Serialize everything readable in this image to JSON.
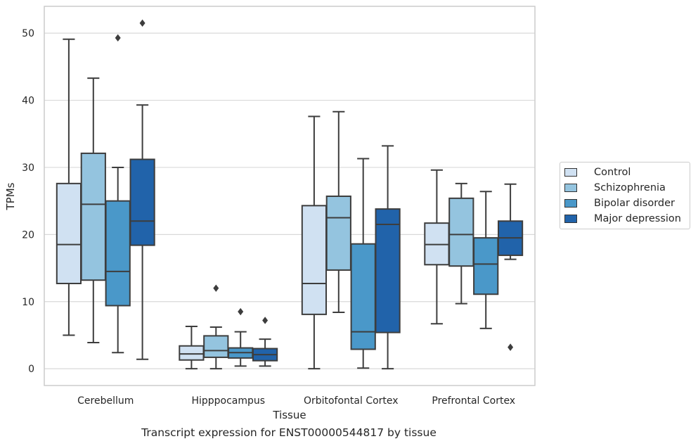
{
  "chart_data": {
    "type": "box",
    "title": "",
    "xlabel": "Tissue",
    "ylabel": "TPMs",
    "ylim": [
      -2.5,
      54
    ],
    "yticks": [
      0,
      10,
      20,
      30,
      40,
      50
    ],
    "grid": "horizontal",
    "legend_position": "right",
    "categories": [
      "Cerebellum",
      "Hipppocampus",
      "Orbitofontal Cortex",
      "Prefrontal Cortex"
    ],
    "series": [
      {
        "name": "Control",
        "color": "#d0e1f2",
        "boxes": [
          {
            "whisker_low": 5.0,
            "q1": 12.7,
            "median": 18.5,
            "q3": 27.6,
            "whisker_high": 49.1,
            "outliers": []
          },
          {
            "whisker_low": 0.0,
            "q1": 1.3,
            "median": 2.2,
            "q3": 3.4,
            "whisker_high": 6.3,
            "outliers": []
          },
          {
            "whisker_low": 0.0,
            "q1": 8.1,
            "median": 12.7,
            "q3": 24.3,
            "whisker_high": 37.6,
            "outliers": []
          },
          {
            "whisker_low": 6.7,
            "q1": 15.5,
            "median": 18.5,
            "q3": 21.7,
            "whisker_high": 29.6,
            "outliers": []
          }
        ]
      },
      {
        "name": "Schizophrenia",
        "color": "#94c4df",
        "boxes": [
          {
            "whisker_low": 3.9,
            "q1": 13.2,
            "median": 24.5,
            "q3": 32.1,
            "whisker_high": 43.3,
            "outliers": []
          },
          {
            "whisker_low": 0.0,
            "q1": 1.7,
            "median": 2.7,
            "q3": 4.9,
            "whisker_high": 6.2,
            "outliers": [
              12.0
            ]
          },
          {
            "whisker_low": 8.4,
            "q1": 14.7,
            "median": 22.5,
            "q3": 25.7,
            "whisker_high": 38.3,
            "outliers": []
          },
          {
            "whisker_low": 9.7,
            "q1": 15.3,
            "median": 20.0,
            "q3": 25.4,
            "whisker_high": 27.6,
            "outliers": []
          }
        ]
      },
      {
        "name": "Bipolar disorder",
        "color": "#4a98c9",
        "boxes": [
          {
            "whisker_low": 2.4,
            "q1": 9.4,
            "median": 14.5,
            "q3": 25.0,
            "whisker_high": 30.0,
            "outliers": [
              49.3
            ]
          },
          {
            "whisker_low": 0.4,
            "q1": 1.6,
            "median": 2.4,
            "q3": 3.1,
            "whisker_high": 5.5,
            "outliers": [
              8.5
            ]
          },
          {
            "whisker_low": 0.1,
            "q1": 2.9,
            "median": 5.5,
            "q3": 18.6,
            "whisker_high": 31.3,
            "outliers": []
          },
          {
            "whisker_low": 6.0,
            "q1": 11.1,
            "median": 15.6,
            "q3": 19.5,
            "whisker_high": 26.4,
            "outliers": []
          }
        ]
      },
      {
        "name": "Major depression",
        "color": "#2163aa",
        "boxes": [
          {
            "whisker_low": 1.4,
            "q1": 18.4,
            "median": 22.0,
            "q3": 31.2,
            "whisker_high": 39.3,
            "outliers": [
              51.5
            ]
          },
          {
            "whisker_low": 0.4,
            "q1": 1.2,
            "median": 2.1,
            "q3": 3.0,
            "whisker_high": 4.4,
            "outliers": [
              7.2
            ]
          },
          {
            "whisker_low": 0.0,
            "q1": 5.4,
            "median": 21.5,
            "q3": 23.8,
            "whisker_high": 33.2,
            "outliers": []
          },
          {
            "whisker_low": 16.3,
            "q1": 16.9,
            "median": 19.5,
            "q3": 22.0,
            "whisker_high": 27.5,
            "outliers": [
              3.2
            ]
          }
        ]
      }
    ]
  },
  "caption": "Transcript expression for ENST00000544817 by tissue"
}
